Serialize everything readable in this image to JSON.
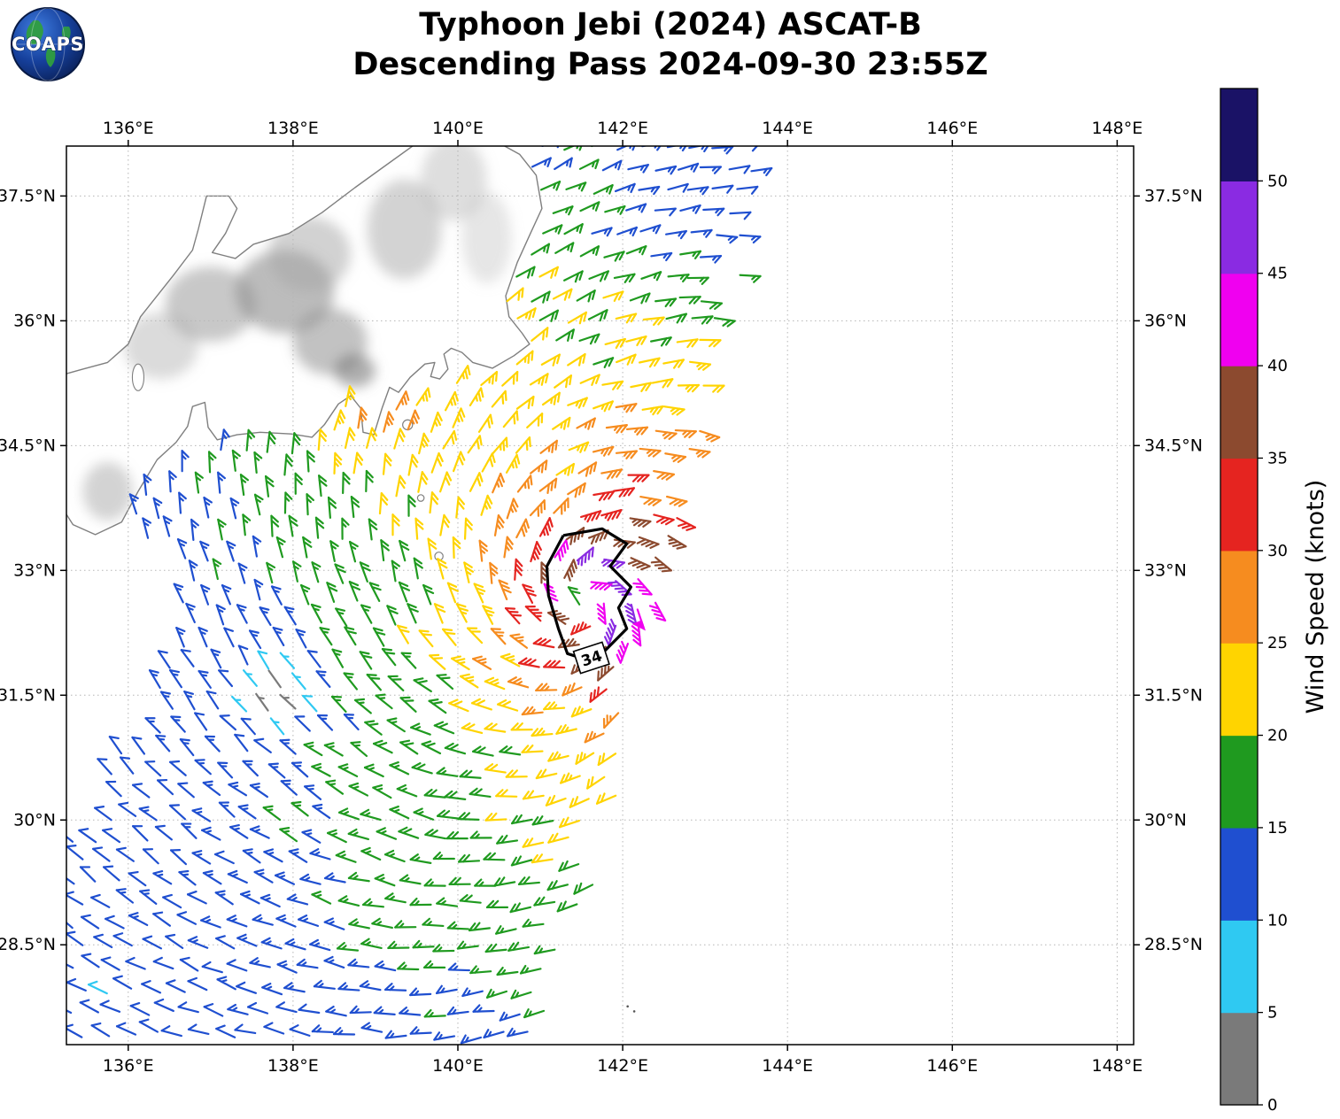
{
  "header": {
    "title_line1": "Typhoon Jebi (2024) ASCAT-B",
    "title_line2": "Descending Pass 2024-09-30 23:55Z",
    "logo_text": "COAPS"
  },
  "axes": {
    "lon_range": [
      135.25,
      148.2
    ],
    "lat_range": [
      27.3,
      38.1
    ],
    "lon_ticks": [
      {
        "value": 136,
        "label": "136°E"
      },
      {
        "value": 138,
        "label": "138°E"
      },
      {
        "value": 140,
        "label": "140°E"
      },
      {
        "value": 142,
        "label": "142°E"
      },
      {
        "value": 144,
        "label": "144°E"
      },
      {
        "value": 146,
        "label": "146°E"
      },
      {
        "value": 148,
        "label": "148°E"
      }
    ],
    "lat_ticks": [
      {
        "value": 28.5,
        "label": "28.5°N"
      },
      {
        "value": 30,
        "label": "30°N"
      },
      {
        "value": 31.5,
        "label": "31.5°N"
      },
      {
        "value": 33,
        "label": "33°N"
      },
      {
        "value": 34.5,
        "label": "34.5°N"
      },
      {
        "value": 36,
        "label": "36°N"
      },
      {
        "value": 37.5,
        "label": "37.5°N"
      }
    ]
  },
  "colorbar": {
    "title": "Wind Speed (knots)",
    "units": "knots",
    "bins": [
      {
        "from": 0,
        "to": 5,
        "color": "#7a7a7a"
      },
      {
        "from": 5,
        "to": 10,
        "color": "#2fc9f2"
      },
      {
        "from": 10,
        "to": 15,
        "color": "#1f4fd0"
      },
      {
        "from": 15,
        "to": 20,
        "color": "#1f9a1f"
      },
      {
        "from": 20,
        "to": 25,
        "color": "#ffd400"
      },
      {
        "from": 25,
        "to": 30,
        "color": "#f68c1f"
      },
      {
        "from": 30,
        "to": 35,
        "color": "#e52420"
      },
      {
        "from": 35,
        "to": 40,
        "color": "#8c4a2f"
      },
      {
        "from": 40,
        "to": 45,
        "color": "#f000f0"
      },
      {
        "from": 45,
        "to": 50,
        "color": "#8a2be2"
      },
      {
        "from": 50,
        "to": 55,
        "color": "#1a1266"
      }
    ],
    "ticks": [
      {
        "value": 0,
        "label": "0"
      },
      {
        "value": 5,
        "label": "5"
      },
      {
        "value": 10,
        "label": "10"
      },
      {
        "value": 15,
        "label": "15"
      },
      {
        "value": 20,
        "label": "20"
      },
      {
        "value": 25,
        "label": "25"
      },
      {
        "value": 30,
        "label": "30"
      },
      {
        "value": 35,
        "label": "35"
      },
      {
        "value": 40,
        "label": "40"
      },
      {
        "value": 45,
        "label": "45"
      },
      {
        "value": 50,
        "label": "50"
      }
    ]
  },
  "chart_data": {
    "type": "wind_barb_map",
    "satellite": "ASCAT-B",
    "storm": {
      "name": "Typhoon Jebi",
      "year": 2024,
      "pass_type": "Descending",
      "datetime": "2024-09-30 23:55Z"
    },
    "center": {
      "lon": 141.55,
      "lat": 32.62
    },
    "max_wind_kt": 46,
    "rmax_deg": 0.45,
    "asym": {
      "dir_rad": 0.5,
      "amp": 0.16
    },
    "inflow_rad": 0.38,
    "noise": 0.09,
    "seed": 7,
    "grid": {
      "dlon": 0.3,
      "dlat": 0.26,
      "jitter": 0.07
    },
    "barb": {
      "length": 23,
      "full": 10,
      "half": 5.5,
      "space": 5.2,
      "width": 2.2,
      "tick_angle_rad": 2.356
    },
    "swath": {
      "ragged": 0.35,
      "left_edge": [
        [
          27.3,
          134.6
        ],
        [
          29.5,
          135.3
        ],
        [
          31.5,
          136.4
        ],
        [
          33.0,
          136.8
        ],
        [
          33.8,
          136.15
        ],
        [
          34.6,
          137.2
        ],
        [
          36.0,
          138.0
        ],
        [
          38.2,
          138.8
        ]
      ],
      "right_edge": [
        [
          27.3,
          141.3
        ],
        [
          28.5,
          141.55
        ],
        [
          31.0,
          142.15
        ],
        [
          33.0,
          142.6
        ],
        [
          35.0,
          143.1
        ],
        [
          36.5,
          143.45
        ],
        [
          38.2,
          143.85
        ]
      ],
      "coast_east": [
        [
          35.2,
          139.9
        ],
        [
          35.8,
          140.6
        ],
        [
          36.5,
          140.5
        ],
        [
          37.2,
          140.9
        ],
        [
          38.2,
          140.9
        ]
      ]
    },
    "enhancements": [
      {
        "lon": 139.1,
        "lat": 35.15,
        "amp": 8.5,
        "sx": 1.7,
        "sy": 0.75,
        "rot_rad": 0.7
      },
      {
        "lon": 142.9,
        "lat": 37.4,
        "amp": -5,
        "sx": 1.6,
        "sy": 1.1,
        "rot_rad": 0.0
      },
      {
        "lon": 140.2,
        "lat": 29.2,
        "amp": 2.5,
        "sx": 2.2,
        "sy": 1.3,
        "rot_rad": 0.2
      }
    ],
    "calm_patches": [
      {
        "lon": 137.85,
        "lat": 31.45,
        "sigma": 0.5,
        "strength": 0.93
      }
    ],
    "special_barbs": [
      {
        "lon": 142.18,
        "lat": 32.53,
        "u": -15,
        "v": 45,
        "color": "#f000f0",
        "pennant": true
      }
    ],
    "contour": {
      "label": "34",
      "label_pos": [
        141.62,
        31.95
      ],
      "points": [
        [
          141.28,
          33.42
        ],
        [
          141.75,
          33.5
        ],
        [
          142.05,
          33.32
        ],
        [
          141.85,
          33.05
        ],
        [
          142.1,
          32.8
        ],
        [
          141.95,
          32.55
        ],
        [
          142.05,
          32.3
        ],
        [
          141.75,
          32.0
        ],
        [
          141.55,
          31.93
        ],
        [
          141.33,
          32.0
        ],
        [
          141.22,
          32.3
        ],
        [
          141.1,
          32.7
        ],
        [
          141.08,
          33.05
        ],
        [
          141.28,
          33.42
        ]
      ]
    },
    "coastline": [
      [
        140.2,
        38.3
      ],
      [
        140.75,
        38.0
      ],
      [
        140.95,
        37.75
      ],
      [
        141.02,
        37.35
      ],
      [
        140.88,
        37.05
      ],
      [
        140.72,
        36.7
      ],
      [
        140.58,
        36.3
      ],
      [
        140.62,
        36.05
      ],
      [
        140.78,
        35.85
      ],
      [
        140.87,
        35.72
      ],
      [
        140.68,
        35.58
      ],
      [
        140.42,
        35.43
      ],
      [
        140.18,
        35.5
      ],
      [
        140.05,
        35.62
      ],
      [
        139.92,
        35.67
      ],
      [
        139.83,
        35.6
      ],
      [
        139.88,
        35.42
      ],
      [
        139.78,
        35.3
      ],
      [
        139.67,
        35.33
      ],
      [
        139.72,
        35.5
      ],
      [
        139.6,
        35.48
      ],
      [
        139.42,
        35.32
      ],
      [
        139.28,
        35.14
      ],
      [
        139.17,
        35.2
      ],
      [
        139.08,
        34.95
      ],
      [
        138.98,
        34.63
      ],
      [
        138.85,
        34.66
      ],
      [
        138.82,
        34.95
      ],
      [
        138.7,
        35.1
      ],
      [
        138.55,
        35.0
      ],
      [
        138.38,
        34.75
      ],
      [
        138.23,
        34.6
      ],
      [
        137.98,
        34.64
      ],
      [
        137.6,
        34.66
      ],
      [
        137.32,
        34.63
      ],
      [
        137.08,
        34.57
      ],
      [
        136.97,
        34.72
      ],
      [
        136.93,
        35.02
      ],
      [
        136.78,
        34.97
      ],
      [
        136.72,
        34.73
      ],
      [
        136.58,
        34.54
      ],
      [
        136.35,
        34.33
      ],
      [
        136.12,
        33.95
      ],
      [
        135.92,
        33.58
      ],
      [
        135.6,
        33.43
      ],
      [
        135.33,
        33.55
      ],
      [
        135.2,
        33.75
      ],
      [
        135.2,
        35.35
      ],
      [
        135.45,
        35.42
      ],
      [
        135.75,
        35.5
      ],
      [
        136.0,
        35.72
      ],
      [
        136.15,
        36.05
      ],
      [
        136.55,
        36.55
      ],
      [
        136.78,
        36.85
      ],
      [
        136.85,
        37.1
      ],
      [
        136.95,
        37.5
      ],
      [
        137.22,
        37.5
      ],
      [
        137.32,
        37.35
      ],
      [
        137.18,
        37.05
      ],
      [
        137.02,
        36.82
      ],
      [
        137.3,
        36.75
      ],
      [
        137.52,
        36.92
      ],
      [
        137.95,
        37.05
      ],
      [
        138.35,
        37.3
      ],
      [
        138.75,
        37.6
      ],
      [
        139.1,
        37.85
      ],
      [
        139.45,
        38.1
      ],
      [
        139.7,
        38.3
      ]
    ],
    "lakes": [
      [
        136.12,
        35.32,
        0.07,
        0.16
      ]
    ],
    "islands": [
      [
        139.39,
        34.75,
        0.06
      ],
      [
        139.55,
        33.87,
        0.04
      ],
      [
        139.77,
        33.17,
        0.05
      ]
    ],
    "islets": [
      [
        142.06,
        27.76
      ],
      [
        142.14,
        27.7
      ]
    ],
    "terrain": [
      [
        137.0,
        36.2,
        0.55,
        0.45,
        "#9a9a9a",
        0.55
      ],
      [
        137.9,
        36.35,
        0.6,
        0.5,
        "#8f8f8f",
        0.6
      ],
      [
        138.45,
        35.75,
        0.45,
        0.4,
        "#909090",
        0.55
      ],
      [
        138.2,
        36.8,
        0.5,
        0.45,
        "#a5a5a5",
        0.5
      ],
      [
        139.35,
        37.1,
        0.45,
        0.6,
        "#a8a8a8",
        0.5
      ],
      [
        139.95,
        37.7,
        0.4,
        0.5,
        "#b5b5b5",
        0.45
      ],
      [
        136.4,
        35.7,
        0.45,
        0.4,
        "#b0b0b0",
        0.45
      ],
      [
        135.75,
        33.95,
        0.3,
        0.35,
        "#a8a8a8",
        0.5
      ],
      [
        138.75,
        35.4,
        0.25,
        0.2,
        "#7a7a7a",
        0.6
      ],
      [
        140.35,
        37.0,
        0.3,
        0.55,
        "#c0c0c0",
        0.4
      ]
    ]
  }
}
